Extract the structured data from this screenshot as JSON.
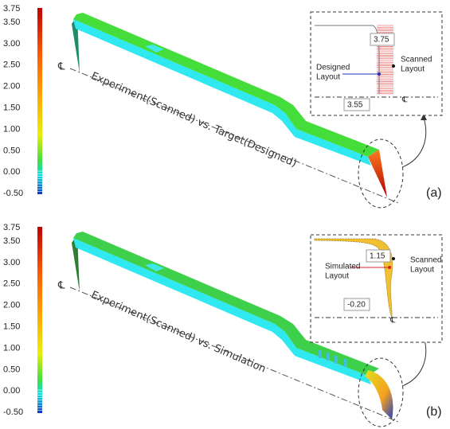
{
  "panels": [
    {
      "label": "(a)",
      "title": "Experiment(Scanned) vs. Target(Designed)",
      "colorbar_ticks": [
        "3.75",
        "3.50",
        "3.00",
        "2.50",
        "2.00",
        "1.50",
        "1.00",
        "0.50",
        "0.00",
        "-0.50"
      ],
      "centerline": "℄",
      "inset": {
        "top_value": "3.75",
        "left_label": [
          "Designed",
          "Layout"
        ],
        "right_label": [
          "Scanned",
          "Layout"
        ],
        "bottom_value": "3.55",
        "centerline": "℄"
      }
    },
    {
      "label": "(b)",
      "title": "Experiment(Scanned) vs. Simulation",
      "colorbar_ticks": [
        "3.75",
        "3.50",
        "3.00",
        "2.50",
        "2.00",
        "1.50",
        "1.00",
        "0.50",
        "0.00",
        "-0.50"
      ],
      "centerline": "℄",
      "inset": {
        "top_value": "1.15",
        "left_label": [
          "Simulated",
          "Layout"
        ],
        "right_label": [
          "Scanned",
          "Layout"
        ],
        "bottom_value": "-0.20",
        "centerline": "℄"
      }
    }
  ]
}
